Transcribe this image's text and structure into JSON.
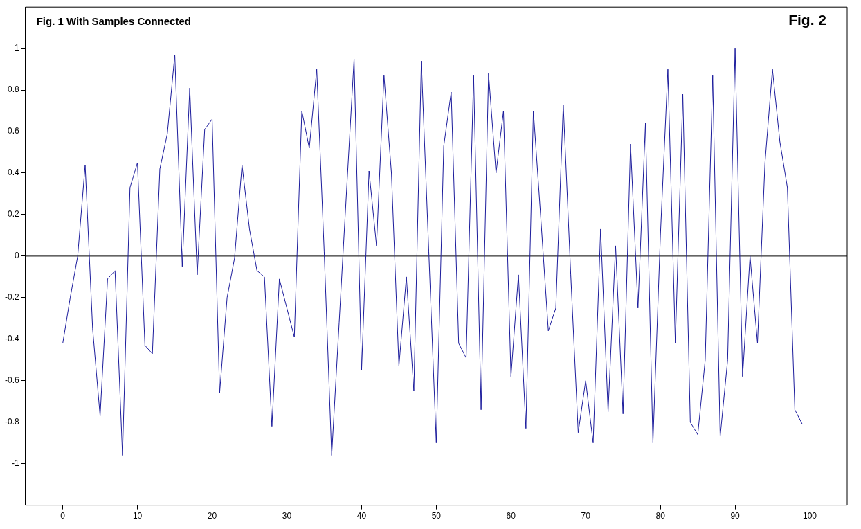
{
  "chart_data": {
    "type": "line",
    "title": "Fig. 1 With Samples Connected",
    "annotations": [
      "Fig. 2"
    ],
    "x": [
      0,
      1,
      2,
      3,
      4,
      5,
      6,
      7,
      8,
      9,
      10,
      11,
      12,
      13,
      14,
      15,
      16,
      17,
      18,
      19,
      20,
      21,
      22,
      23,
      24,
      25,
      26,
      27,
      28,
      29,
      30,
      31,
      32,
      33,
      34,
      35,
      36,
      37,
      38,
      39,
      40,
      41,
      42,
      43,
      44,
      45,
      46,
      47,
      48,
      49,
      50,
      51,
      52,
      53,
      54,
      55,
      56,
      57,
      58,
      59,
      60,
      61,
      62,
      63,
      64,
      65,
      66,
      67,
      68,
      69,
      70,
      71,
      72,
      73,
      74,
      75,
      76,
      77,
      78,
      79,
      80,
      81,
      82,
      83,
      84,
      85,
      86,
      87,
      88,
      89,
      90,
      91,
      92,
      93,
      94,
      95,
      96,
      97,
      98,
      99
    ],
    "series": [
      {
        "color": "#1c1c9c",
        "values": [
          -0.42,
          -0.2,
          0.0,
          0.44,
          -0.35,
          -0.77,
          -0.11,
          -0.07,
          -0.96,
          0.33,
          0.45,
          -0.43,
          -0.47,
          0.42,
          0.59,
          0.97,
          -0.05,
          0.81,
          -0.09,
          0.61,
          0.66,
          -0.66,
          -0.2,
          -0.01,
          0.44,
          0.13,
          -0.07,
          -0.1,
          -0.82,
          -0.11,
          -0.25,
          -0.39,
          0.7,
          0.52,
          0.9,
          0.02,
          -0.96,
          -0.32,
          0.32,
          0.95,
          -0.55,
          0.41,
          0.05,
          0.87,
          0.4,
          -0.53,
          -0.1,
          -0.65,
          0.94,
          0.02,
          -0.9,
          0.53,
          0.79,
          -0.42,
          -0.49,
          0.87,
          -0.74,
          0.88,
          0.4,
          0.7,
          -0.58,
          -0.09,
          -0.83,
          0.7,
          0.18,
          -0.36,
          -0.25,
          0.73,
          -0.09,
          -0.85,
          -0.6,
          -0.9,
          0.13,
          -0.75,
          0.05,
          -0.76,
          0.54,
          -0.25,
          0.64,
          -0.9,
          0.1,
          0.9,
          -0.42,
          0.78,
          -0.8,
          -0.86,
          -0.5,
          0.87,
          -0.87,
          -0.5,
          1.0,
          -0.58,
          0.0,
          -0.42,
          0.45,
          0.9,
          0.55,
          0.33,
          -0.74,
          -0.81
        ]
      }
    ],
    "xlim": [
      -5,
      105
    ],
    "xticks": [
      0,
      10,
      20,
      30,
      40,
      50,
      60,
      70,
      80,
      90,
      100
    ],
    "ylim": [
      -1.2,
      1.2
    ],
    "yticks": [
      -1,
      -0.8,
      -0.6,
      -0.4,
      -0.2,
      0,
      0.2,
      0.4,
      0.6,
      0.8,
      1
    ],
    "ref_lines": [
      {
        "axis": "y",
        "value": 0,
        "color": "#000000"
      }
    ],
    "grid": false,
    "legend": false,
    "marker": "none",
    "line_style": "solid"
  }
}
